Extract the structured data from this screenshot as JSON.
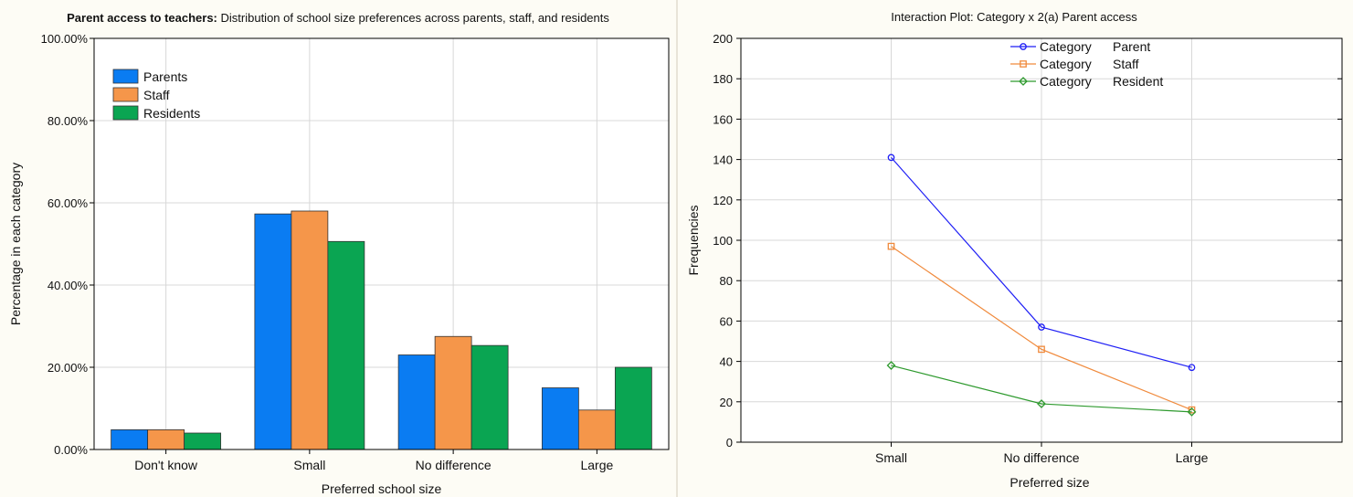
{
  "charts": {
    "left": {
      "title_bold": "Parent access to teachers:",
      "title_rest": " Distribution of school size preferences across parents, staff, and residents"
    },
    "right": {
      "title": "Interaction Plot: Category x 2(a) Parent access"
    }
  },
  "chart_data": [
    {
      "type": "bar",
      "title": "Parent access to teachers: Distribution of school size preferences across parents, staff, and residents",
      "xlabel": "Preferred school size",
      "ylabel": "Percentage in each category",
      "categories": [
        "Don't know",
        "Small",
        "No difference",
        "Large"
      ],
      "ylim": [
        0,
        100
      ],
      "yticks": [
        "0.00%",
        "20.00%",
        "40.00%",
        "60.00%",
        "80.00%",
        "100.00%"
      ],
      "grid": true,
      "legend_position": "top-left",
      "series": [
        {
          "name": "Parents",
          "color": "#0a7cf2",
          "values": [
            4.8,
            57.3,
            23.0,
            15.0
          ]
        },
        {
          "name": "Staff",
          "color": "#f5964a",
          "values": [
            4.8,
            58.0,
            27.5,
            9.6
          ]
        },
        {
          "name": "Residents",
          "color": "#0aa552",
          "values": [
            4.0,
            50.6,
            25.3,
            20.0
          ]
        }
      ]
    },
    {
      "type": "line",
      "title": "Interaction Plot: Category x 2(a) Parent access",
      "xlabel": "Preferred size",
      "ylabel": "Frequencies",
      "categories": [
        "Small",
        "No difference",
        "Large"
      ],
      "ylim": [
        0,
        200
      ],
      "yticks": [
        "0",
        "20",
        "40",
        "60",
        "80",
        "100",
        "120",
        "140",
        "160",
        "180",
        "200"
      ],
      "grid": true,
      "legend_position": "top-center",
      "series": [
        {
          "name": "Parent",
          "label": "Category",
          "color": "#1f1ff5",
          "marker": "circle",
          "values": [
            141,
            57,
            37
          ]
        },
        {
          "name": "Staff",
          "label": "Category",
          "color": "#f08a3c",
          "marker": "square",
          "values": [
            97,
            46,
            16
          ]
        },
        {
          "name": "Resident",
          "label": "Category",
          "color": "#2e9a2e",
          "marker": "diamond",
          "values": [
            38,
            19,
            15
          ]
        }
      ]
    }
  ]
}
